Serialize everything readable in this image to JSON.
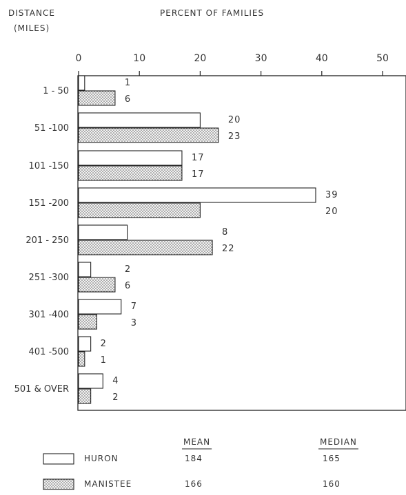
{
  "chart_data": {
    "type": "bar",
    "orientation": "horizontal",
    "ylabel": "DISTANCE\n(MILES)",
    "xlabel": "PERCENT OF FAMILIES",
    "xlim": [
      0,
      50
    ],
    "xticks": [
      0,
      10,
      20,
      30,
      40,
      50
    ],
    "grid": false,
    "categories": [
      "1 - 50",
      "51 -100",
      "101 -150",
      "151 -200",
      "201 - 250",
      "251 -300",
      "301 -400",
      "401 -500",
      "501 & OVER"
    ],
    "series": [
      {
        "name": "HURON",
        "values": [
          1,
          20,
          17,
          39,
          8,
          2,
          7,
          2,
          4
        ],
        "fill": "#ffffff"
      },
      {
        "name": "MANISTEE",
        "values": [
          6,
          23,
          17,
          20,
          22,
          6,
          3,
          1,
          2
        ],
        "fill": "stippled"
      }
    ],
    "legend": {
      "position": "bottom-left",
      "columns": [
        "MEAN",
        "MEDIAN"
      ],
      "rows": [
        {
          "name": "HURON",
          "mean": "184",
          "median": "165"
        },
        {
          "name": "MANISTEE",
          "mean": "166",
          "median": "160"
        }
      ]
    }
  }
}
